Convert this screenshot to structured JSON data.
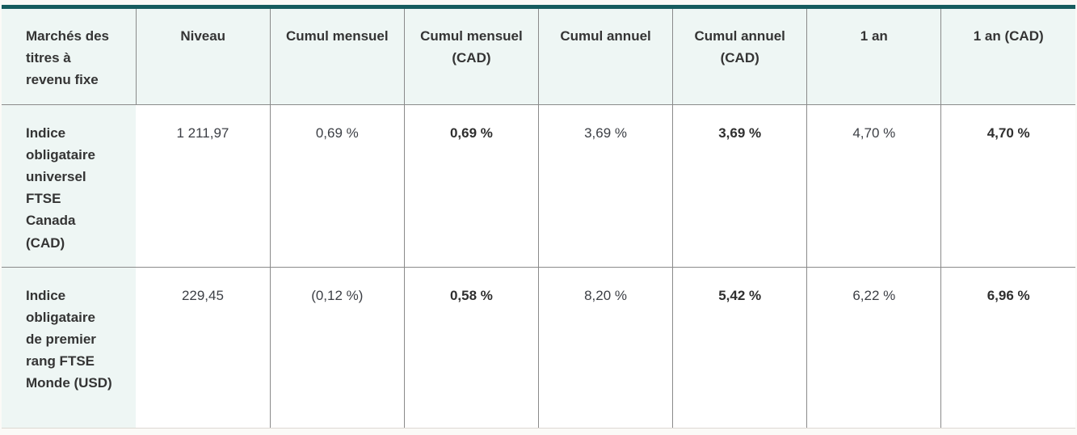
{
  "theme": {
    "accent_top_bar": "#175c5e",
    "header_and_label_bg": "#eef6f4",
    "grid_line": "#8a8a8a",
    "table_bottom_border": "#ddd9d3",
    "page_background": "#fbfaf7",
    "text": "#3c3f45",
    "bold_text": "#2f2f2f"
  },
  "table": {
    "headers": [
      "Marchés des titres à revenu fixe",
      "Niveau",
      "Cumul mensuel",
      "Cumul mensuel (CAD)",
      "Cumul annuel",
      "Cumul annuel (CAD)",
      "1 an",
      "1 an (CAD)"
    ],
    "rows": [
      {
        "label": "Indice obligataire universel FTSE Canada (CAD)",
        "cells": [
          "1 211,97",
          "0,69 %",
          "0,69 %",
          "3,69 %",
          "3,69 %",
          "4,70 %",
          "4,70 %"
        ]
      },
      {
        "label": "Indice obligataire de premier rang FTSE Monde (USD)",
        "cells": [
          "229,45",
          "(0,12 %)",
          "0,58 %",
          "8,20 %",
          "5,42 %",
          "6,22 %",
          "6,96 %"
        ]
      }
    ]
  },
  "chart_data": {
    "type": "table",
    "title": "Marchés des titres à revenu fixe",
    "columns": [
      "Marchés des titres à revenu fixe",
      "Niveau",
      "Cumul mensuel",
      "Cumul mensuel (CAD)",
      "Cumul annuel",
      "Cumul annuel (CAD)",
      "1 an",
      "1 an (CAD)"
    ],
    "rows": [
      [
        "Indice obligataire universel FTSE Canada (CAD)",
        1211.97,
        0.69,
        0.69,
        3.69,
        3.69,
        4.7,
        4.7
      ],
      [
        "Indice obligataire de premier rang FTSE Monde (USD)",
        229.45,
        -0.12,
        0.58,
        8.2,
        5.42,
        6.22,
        6.96
      ]
    ],
    "units": "percent except Niveau (index level); values shown in French number format; CAD columns rendered bold; negative values in parentheses"
  }
}
